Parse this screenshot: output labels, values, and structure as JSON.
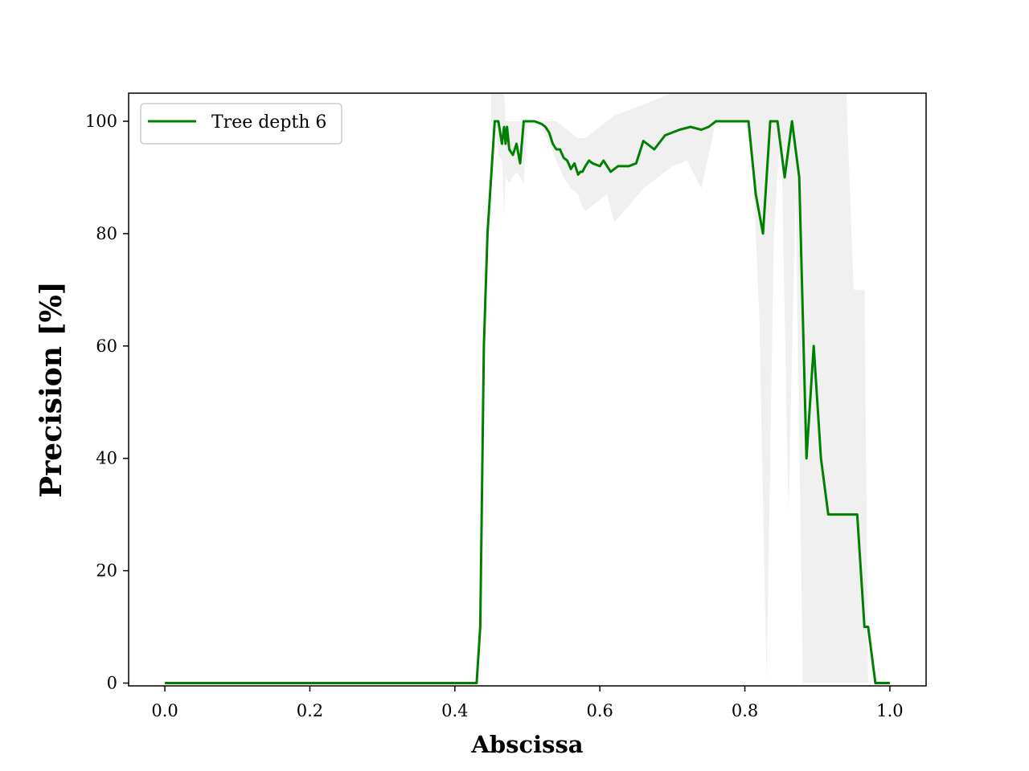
{
  "chart_data": {
    "type": "line",
    "title": "",
    "xlabel": "Abscissa",
    "ylabel": "Precision [%]",
    "xlim": [
      -0.05,
      1.05
    ],
    "ylim": [
      -0.5,
      105
    ],
    "xticks": [
      0.0,
      0.2,
      0.4,
      0.6,
      0.8,
      1.0
    ],
    "xtick_labels": [
      "0.0",
      "0.2",
      "0.4",
      "0.6",
      "0.8",
      "1.0"
    ],
    "yticks": [
      0,
      20,
      40,
      60,
      80,
      100
    ],
    "ytick_labels": [
      "0",
      "20",
      "40",
      "60",
      "80",
      "100"
    ],
    "grid": false,
    "legend": {
      "position": "top-left",
      "entries": [
        "Tree depth 6"
      ]
    },
    "series": [
      {
        "name": "Tree depth 6",
        "color": "#008000",
        "x": [
          0.0,
          0.1,
          0.2,
          0.3,
          0.4,
          0.43,
          0.435,
          0.44,
          0.445,
          0.455,
          0.46,
          0.465,
          0.468,
          0.47,
          0.472,
          0.475,
          0.48,
          0.485,
          0.49,
          0.495,
          0.5,
          0.51,
          0.52,
          0.525,
          0.53,
          0.535,
          0.54,
          0.545,
          0.55,
          0.555,
          0.56,
          0.565,
          0.57,
          0.573,
          0.576,
          0.58,
          0.585,
          0.59,
          0.6,
          0.605,
          0.615,
          0.625,
          0.64,
          0.65,
          0.66,
          0.675,
          0.69,
          0.71,
          0.725,
          0.74,
          0.75,
          0.76,
          0.78,
          0.795,
          0.805,
          0.815,
          0.825,
          0.835,
          0.845,
          0.855,
          0.865,
          0.875,
          0.885,
          0.895,
          0.905,
          0.915,
          0.93,
          0.945,
          0.955,
          0.965,
          0.97,
          0.98,
          1.0
        ],
        "y": [
          0,
          0,
          0,
          0,
          0,
          0,
          10,
          60,
          80,
          100,
          100,
          96,
          99,
          96,
          99,
          95,
          94,
          96,
          92.5,
          100,
          100,
          100,
          99.5,
          99,
          98,
          96,
          95,
          95,
          93.5,
          93,
          91.5,
          92.5,
          90.5,
          91,
          91,
          92,
          93,
          92.5,
          92,
          93,
          91,
          92,
          92,
          92.5,
          96.5,
          95,
          97.5,
          98.5,
          99,
          98.5,
          99,
          100,
          100,
          100,
          100,
          87,
          80,
          100,
          100,
          90,
          100,
          90,
          40,
          60,
          40,
          30,
          30,
          30,
          30,
          10,
          10,
          0,
          0
        ]
      }
    ],
    "band": {
      "color": "#d3d3d3",
      "x": [
        0.43,
        0.435,
        0.44,
        0.445,
        0.45,
        0.455,
        0.46,
        0.465,
        0.468,
        0.47,
        0.475,
        0.48,
        0.485,
        0.49,
        0.495,
        0.5,
        0.51,
        0.52,
        0.53,
        0.54,
        0.55,
        0.56,
        0.57,
        0.575,
        0.58,
        0.59,
        0.6,
        0.61,
        0.62,
        0.64,
        0.66,
        0.68,
        0.7,
        0.72,
        0.74,
        0.76,
        0.78,
        0.8,
        0.81,
        0.82,
        0.83,
        0.84,
        0.85,
        0.86,
        0.87,
        0.88,
        0.89,
        0.9,
        0.91,
        0.92,
        0.93,
        0.94,
        0.95,
        0.96,
        0.965,
        0.97,
        0.98,
        1.0
      ],
      "lower": [
        0,
        0,
        0,
        0,
        100,
        100,
        94,
        93,
        83,
        90,
        89,
        90,
        91,
        90,
        89,
        100,
        100,
        99,
        96,
        93,
        90,
        88,
        87,
        85,
        84,
        85,
        86,
        87,
        82,
        85,
        88,
        90,
        92,
        93,
        88,
        100,
        100,
        100,
        95,
        65,
        0,
        80,
        100,
        30,
        88,
        0,
        0,
        0,
        0,
        0,
        0,
        0,
        0,
        0,
        0,
        0,
        0,
        0
      ],
      "upper": [
        0,
        0,
        0,
        0,
        105,
        105,
        105,
        105,
        105,
        100,
        100,
        100,
        100,
        100,
        100,
        100,
        100,
        100,
        100,
        100,
        99,
        98,
        97,
        97,
        97,
        98,
        99,
        100,
        101,
        102,
        103,
        104,
        105,
        105,
        105,
        105,
        105,
        105,
        105,
        105,
        105,
        105,
        105,
        105,
        105,
        105,
        105,
        105,
        105,
        105,
        105,
        105,
        70,
        70,
        70,
        0,
        0,
        0
      ]
    }
  }
}
